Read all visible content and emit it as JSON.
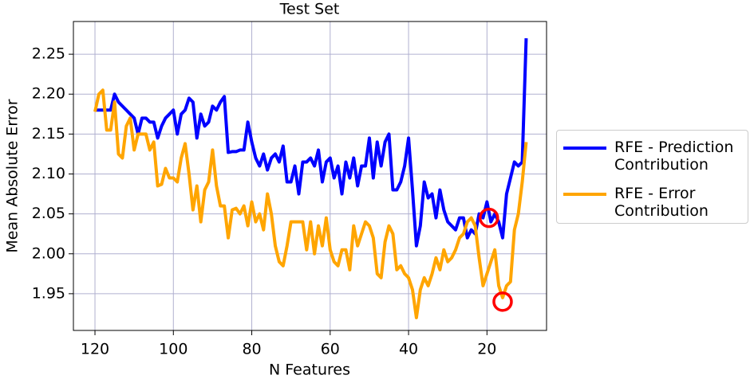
{
  "chart_data": {
    "type": "line",
    "title": "Test Set",
    "x_label": "N Features",
    "y_label": "Mean Absolute Error",
    "x": [
      120,
      119,
      118,
      117,
      116,
      115,
      114,
      113,
      112,
      111,
      110,
      109,
      108,
      107,
      106,
      105,
      104,
      103,
      102,
      101,
      100,
      99,
      98,
      97,
      96,
      95,
      94,
      93,
      92,
      91,
      90,
      89,
      88,
      87,
      86,
      85,
      84,
      83,
      82,
      81,
      80,
      79,
      78,
      77,
      76,
      75,
      74,
      73,
      72,
      71,
      70,
      69,
      68,
      67,
      66,
      65,
      64,
      63,
      62,
      61,
      60,
      59,
      58,
      57,
      56,
      55,
      54,
      53,
      52,
      51,
      50,
      49,
      48,
      47,
      46,
      45,
      44,
      43,
      42,
      41,
      40,
      39,
      38,
      37,
      36,
      35,
      34,
      33,
      32,
      31,
      30,
      29,
      28,
      27,
      26,
      25,
      24,
      23,
      22,
      21,
      20,
      19,
      18,
      17,
      16,
      15,
      14,
      13,
      12,
      11,
      10
    ],
    "series": [
      {
        "name": "RFE - Prediction Contribution",
        "color": "#0000ff",
        "values": [
          2.18,
          2.18,
          2.18,
          2.18,
          2.18,
          2.2,
          2.19,
          2.185,
          2.18,
          2.175,
          2.17,
          2.15,
          2.17,
          2.17,
          2.165,
          2.165,
          2.145,
          2.16,
          2.17,
          2.175,
          2.18,
          2.15,
          2.175,
          2.18,
          2.195,
          2.19,
          2.145,
          2.175,
          2.16,
          2.165,
          2.185,
          2.18,
          2.19,
          2.197,
          2.127,
          2.128,
          2.128,
          2.13,
          2.13,
          2.165,
          2.14,
          2.12,
          2.11,
          2.125,
          2.105,
          2.12,
          2.125,
          2.115,
          2.135,
          2.09,
          2.09,
          2.11,
          2.075,
          2.115,
          2.115,
          2.12,
          2.11,
          2.13,
          2.09,
          2.115,
          2.12,
          2.095,
          2.11,
          2.075,
          2.115,
          2.095,
          2.12,
          2.085,
          2.11,
          2.11,
          2.145,
          2.095,
          2.14,
          2.11,
          2.14,
          2.15,
          2.08,
          2.08,
          2.09,
          2.11,
          2.145,
          2.08,
          2.01,
          2.035,
          2.09,
          2.07,
          2.075,
          2.045,
          2.08,
          2.055,
          2.04,
          2.035,
          2.03,
          2.045,
          2.045,
          2.02,
          2.03,
          2.025,
          2.05,
          2.045,
          2.065,
          2.04,
          2.05,
          2.04,
          2.02,
          2.075,
          2.095,
          2.115,
          2.11,
          2.115,
          2.27
        ]
      },
      {
        "name": "RFE - Error Contribution",
        "color": "#ffa500",
        "values": [
          2.178,
          2.2,
          2.205,
          2.155,
          2.155,
          2.19,
          2.125,
          2.12,
          2.16,
          2.17,
          2.13,
          2.15,
          2.15,
          2.15,
          2.13,
          2.14,
          2.085,
          2.087,
          2.107,
          2.095,
          2.095,
          2.09,
          2.12,
          2.138,
          2.1,
          2.055,
          2.085,
          2.04,
          2.08,
          2.09,
          2.13,
          2.085,
          2.06,
          2.06,
          2.02,
          2.055,
          2.057,
          2.05,
          2.06,
          2.035,
          2.065,
          2.04,
          2.05,
          2.03,
          2.075,
          2.05,
          2.01,
          1.99,
          1.985,
          2.01,
          2.04,
          2.04,
          2.04,
          2.04,
          2.005,
          2.04,
          2,
          2.035,
          2.01,
          2.045,
          2.005,
          1.99,
          1.985,
          2.005,
          2.005,
          1.98,
          2.035,
          2.01,
          2.025,
          2.04,
          2.035,
          2.02,
          1.975,
          1.97,
          2.015,
          2.035,
          2.025,
          1.98,
          1.985,
          1.975,
          1.97,
          1.955,
          1.92,
          1.955,
          1.97,
          1.96,
          1.975,
          1.995,
          1.98,
          2.005,
          1.99,
          1.995,
          2.005,
          2.02,
          2.025,
          2.04,
          2.045,
          2.035,
          1.995,
          1.96,
          1.975,
          1.99,
          2.005,
          1.96,
          1.945,
          1.96,
          1.965,
          2.03,
          2.05,
          2.09,
          2.14
        ]
      }
    ],
    "highlight_points": [
      {
        "x": 19.5,
        "y": 2.045
      },
      {
        "x": 16,
        "y": 1.94
      }
    ],
    "highlight_color": "#ff0000",
    "xlim": [
      125.5,
      4.8
    ],
    "ylim": [
      1.904,
      2.291
    ],
    "xticks": [
      120,
      100,
      80,
      60,
      40,
      20
    ],
    "yticks": [
      1.95,
      {
        "value": 2,
        "label": "2.00"
      },
      2.05,
      {
        "value": 2.1,
        "label": "2.10"
      },
      2.15,
      {
        "value": 2.2,
        "label": "2.20"
      },
      2.25
    ],
    "grid": true,
    "legend": "right"
  }
}
